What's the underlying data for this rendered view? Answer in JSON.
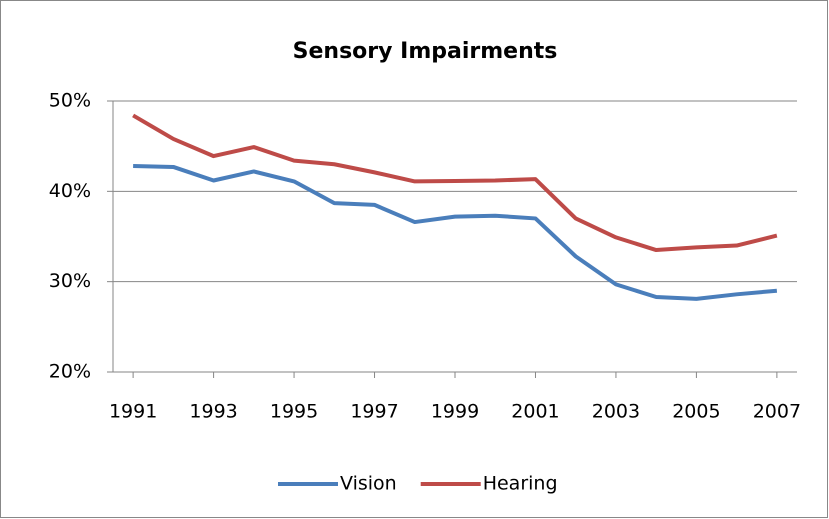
{
  "chart_data": {
    "type": "line",
    "title": "Sensory Impairments",
    "x": [
      1991,
      1992,
      1993,
      1994,
      1995,
      1996,
      1997,
      1998,
      1999,
      2000,
      2001,
      2002,
      2003,
      2004,
      2005,
      2006,
      2007
    ],
    "series": [
      {
        "name": "Vision",
        "color": "#4a7ebb",
        "values": [
          42.8,
          42.7,
          41.2,
          42.2,
          41.1,
          38.7,
          38.5,
          36.6,
          37.2,
          37.3,
          37.0,
          32.8,
          29.7,
          28.3,
          28.1,
          28.6,
          29.0
        ]
      },
      {
        "name": "Hearing",
        "color": "#be4b48",
        "values": [
          48.4,
          45.8,
          43.9,
          44.9,
          43.4,
          43.0,
          42.1,
          41.1,
          41.15,
          41.2,
          41.35,
          37.0,
          34.9,
          33.5,
          33.8,
          34.0,
          35.1
        ]
      }
    ],
    "xlim": [
      1990.5,
      2007.5
    ],
    "xticks": [
      1991,
      1993,
      1995,
      1997,
      1999,
      2001,
      2003,
      2005,
      2007
    ],
    "ylim": [
      20,
      50
    ],
    "yticks": [
      {
        "value": 20,
        "label": "20%"
      },
      {
        "value": 30,
        "label": "30%"
      },
      {
        "value": 40,
        "label": "40%"
      },
      {
        "value": 50,
        "label": "50%"
      }
    ],
    "grid": true,
    "legend": "bottom"
  }
}
